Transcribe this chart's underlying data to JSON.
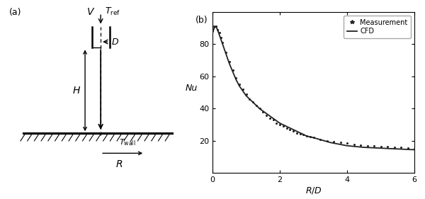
{
  "fig_width": 6.0,
  "fig_height": 2.81,
  "dpi": 100,
  "panel_a_label": "(a)",
  "panel_b_label": "(b)",
  "plot_xlabel": "$R/D$",
  "plot_ylabel": "Nu",
  "plot_xlim": [
    0,
    6
  ],
  "plot_ylim": [
    0,
    100
  ],
  "plot_yticks": [
    20,
    40,
    60,
    80
  ],
  "plot_xticks": [
    0,
    2,
    4,
    6
  ],
  "legend_measurement": "Measurement",
  "legend_cfd": "CFD",
  "cfd_x": [
    0.0,
    0.05,
    0.1,
    0.15,
    0.2,
    0.3,
    0.4,
    0.5,
    0.6,
    0.7,
    0.8,
    0.9,
    1.0,
    1.2,
    1.4,
    1.6,
    1.8,
    2.0,
    2.2,
    2.5,
    2.8,
    3.0,
    3.5,
    4.0,
    4.5,
    5.0,
    5.5,
    6.0
  ],
  "cfd_y": [
    87,
    90,
    91,
    89,
    86,
    80,
    74,
    68,
    63,
    58,
    54,
    51,
    48,
    44,
    40,
    37,
    34,
    31,
    29,
    26,
    23,
    22,
    19,
    17,
    16,
    15.5,
    15,
    14.5
  ],
  "meas_x": [
    0.0,
    0.05,
    0.1,
    0.15,
    0.2,
    0.25,
    0.3,
    0.4,
    0.5,
    0.6,
    0.7,
    0.8,
    0.9,
    1.0,
    1.1,
    1.2,
    1.3,
    1.4,
    1.5,
    1.6,
    1.7,
    1.8,
    1.9,
    2.0,
    2.1,
    2.2,
    2.3,
    2.4,
    2.5,
    2.6,
    2.7,
    2.8,
    2.9,
    3.0,
    3.2,
    3.4,
    3.6,
    3.8,
    4.0,
    4.2,
    4.4,
    4.6,
    4.8,
    5.0,
    5.2,
    5.4,
    5.6,
    5.8,
    6.0
  ],
  "meas_y": [
    88,
    91,
    91,
    89,
    87,
    84,
    81,
    75,
    69,
    64,
    59,
    55,
    52,
    49,
    46,
    44,
    42,
    40,
    38,
    36,
    34,
    33,
    31,
    30,
    29,
    28,
    27,
    26,
    25,
    24.5,
    24,
    23,
    22.5,
    22,
    21,
    20,
    19.5,
    19,
    18.5,
    18,
    17.5,
    17,
    17,
    16.5,
    16.5,
    16,
    16,
    15.5,
    15
  ],
  "line_color": "#222222",
  "marker_color": "#222222"
}
